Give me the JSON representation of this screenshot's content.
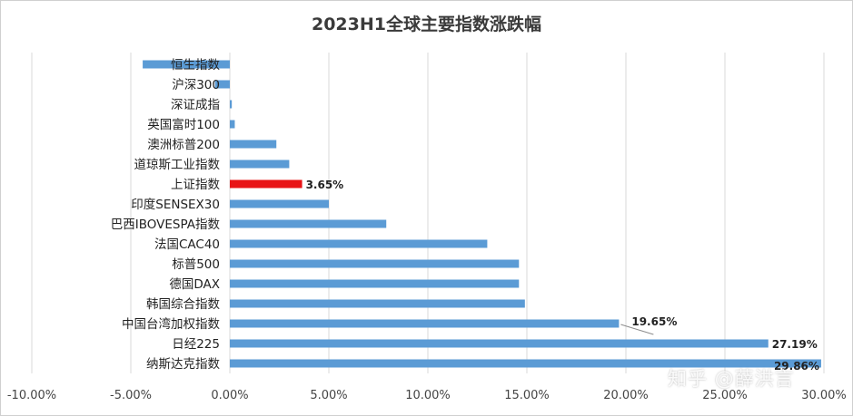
{
  "chart_data": {
    "type": "bar",
    "orientation": "horizontal",
    "title": "2023H1全球主要指数涨跌幅",
    "categories": [
      "恒生指数",
      "沪深300",
      "深证成指",
      "英国富时100",
      "澳洲标普200",
      "道琼斯工业指数",
      "上证指数",
      "印度SENSEX30",
      "巴西IBOVESPA指数",
      "法国CAC40",
      "标普500",
      "德国DAX",
      "韩国综合指数",
      "中国台湾加权指数",
      "日经225",
      "纳斯达克指数"
    ],
    "values": [
      -4.4,
      -0.75,
      0.1,
      0.25,
      2.35,
      3.0,
      3.65,
      5.0,
      7.9,
      13.0,
      14.6,
      14.6,
      14.9,
      19.65,
      27.19,
      29.86
    ],
    "unit": "%",
    "data_labels": [
      {
        "category": "上证指数",
        "text": "3.65%"
      },
      {
        "category": "中国台湾加权指数",
        "text": "19.65%"
      },
      {
        "category": "日经225",
        "text": "27.19%"
      },
      {
        "category": "纳斯达克指数",
        "text": "29.86%"
      }
    ],
    "highlight": {
      "category": "上证指数",
      "color": "#e81416"
    },
    "bar_color": "#5b9bd5",
    "grid_color": "#d9d9d9",
    "xlim": [
      -10,
      30
    ],
    "xticks": [
      -10,
      -5,
      0,
      5,
      10,
      15,
      20,
      25,
      30
    ],
    "xtick_labels": [
      "-10.00%",
      "-5.00%",
      "0.00%",
      "5.00%",
      "10.00%",
      "15.00%",
      "20.00%",
      "25.00%",
      "30.00%"
    ],
    "grid": true,
    "legend": false
  },
  "watermark": "知乎 @薛洪言"
}
